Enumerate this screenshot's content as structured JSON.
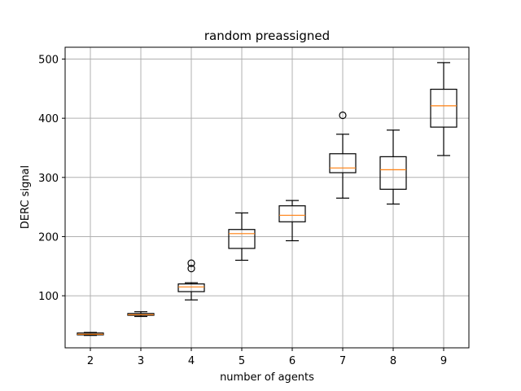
{
  "chart_data": {
    "type": "box",
    "title": "random preassigned",
    "xlabel": "number of agents",
    "ylabel": "DERC signal",
    "ylim": [
      12,
      520
    ],
    "grid": true,
    "y_ticks": [
      100,
      200,
      300,
      400,
      500
    ],
    "categories": [
      "2",
      "3",
      "4",
      "5",
      "6",
      "7",
      "8",
      "9"
    ],
    "boxes": [
      {
        "x": "2",
        "whisker_low": 33,
        "q1": 34,
        "median": 35,
        "q3": 37,
        "whisker_high": 38,
        "outliers": []
      },
      {
        "x": "3",
        "whisker_low": 65,
        "q1": 67,
        "median": 68,
        "q3": 70,
        "whisker_high": 73,
        "outliers": []
      },
      {
        "x": "4",
        "whisker_low": 93,
        "q1": 107,
        "median": 115,
        "q3": 120,
        "whisker_high": 122,
        "outliers": [
          146,
          155
        ]
      },
      {
        "x": "5",
        "whisker_low": 160,
        "q1": 180,
        "median": 205,
        "q3": 212,
        "whisker_high": 240,
        "outliers": []
      },
      {
        "x": "6",
        "whisker_low": 193,
        "q1": 225,
        "median": 236,
        "q3": 252,
        "whisker_high": 261,
        "outliers": []
      },
      {
        "x": "7",
        "whisker_low": 265,
        "q1": 308,
        "median": 316,
        "q3": 340,
        "whisker_high": 373,
        "outliers": [
          405
        ]
      },
      {
        "x": "8",
        "whisker_low": 255,
        "q1": 280,
        "median": 313,
        "q3": 335,
        "whisker_high": 380,
        "outliers": []
      },
      {
        "x": "9",
        "whisker_low": 337,
        "q1": 385,
        "median": 421,
        "q3": 449,
        "whisker_high": 494,
        "outliers": []
      }
    ],
    "colors": {
      "box": "#000000",
      "median": "#ff7f0e",
      "grid": "#b0b0b0"
    }
  }
}
